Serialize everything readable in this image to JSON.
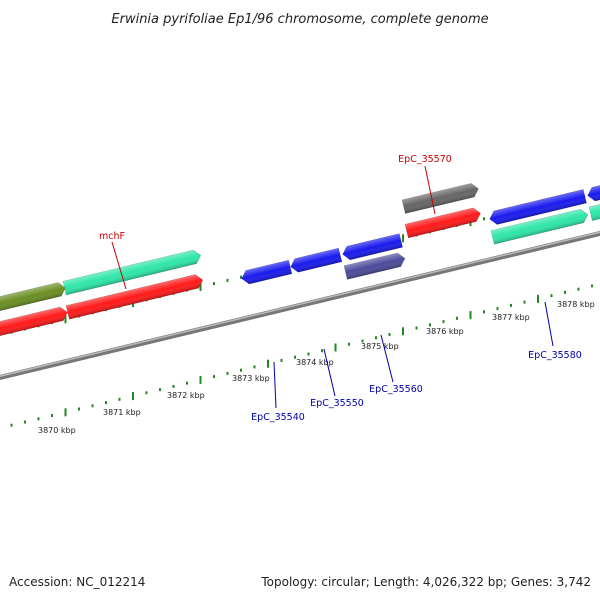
{
  "title": "Erwinia pyrifoliae Ep1/96 chromosome, complete genome",
  "footer": {
    "accession": "Accession: NC_012214",
    "topology": "Topology: circular; Length: 4,026,322 bp; Genes: 3,742"
  },
  "colors": {
    "tick": "#228822",
    "backbone": "#808080",
    "label_red": "#cc0000",
    "label_blue": "#0000aa",
    "gene_red": "#ff1a1a",
    "gene_teal": "#2ee6a8",
    "gene_olive": "#6b8e23",
    "gene_blue": "#1a1aee",
    "gene_slate": "#4b4b9a",
    "gene_gray": "#666666"
  },
  "ruler": {
    "labels": [
      "3870 kbp",
      "3871 kbp",
      "3872 kbp",
      "3873 kbp",
      "3874 kbp",
      "3875 kbp",
      "3876 kbp",
      "3877 kbp",
      "3878 kbp"
    ]
  },
  "gene_labels": [
    "mchF",
    "EpC_35570",
    "EpC_35540",
    "EpC_35550",
    "EpC_35560",
    "EpC_35580"
  ],
  "genes": [
    {
      "name": "olive-gene",
      "color": "olive",
      "strand": 1,
      "direction": 1
    },
    {
      "name": "teal-gene",
      "color": "teal",
      "strand": 1,
      "direction": 1
    },
    {
      "name": "red-gene-left",
      "color": "red",
      "strand": 2,
      "direction": 1
    },
    {
      "name": "red-gene-main",
      "color": "red",
      "strand": 2,
      "direction": 1
    },
    {
      "name": "blue-gene-35540",
      "color": "blue",
      "strand": 3,
      "direction": -1
    },
    {
      "name": "blue-gene-35550",
      "color": "blue",
      "strand": 3,
      "direction": -1
    },
    {
      "name": "blue-gene-35560",
      "color": "blue",
      "strand": 3,
      "direction": -1
    },
    {
      "name": "slate-gene",
      "color": "slate",
      "strand": 4,
      "direction": 1
    },
    {
      "name": "gray-gene-35570",
      "color": "gray",
      "strand": 1,
      "direction": 1
    },
    {
      "name": "red-gene-right",
      "color": "red",
      "strand": 2,
      "direction": 1
    },
    {
      "name": "blue-gene-35580",
      "color": "blue",
      "strand": 3,
      "direction": -1
    },
    {
      "name": "blue-gene-edge",
      "color": "blue",
      "strand": 3,
      "direction": -1
    },
    {
      "name": "teal-gene-right",
      "color": "teal",
      "strand": 4,
      "direction": 1
    },
    {
      "name": "teal-gene-edge",
      "color": "teal",
      "strand": 4,
      "direction": 1
    }
  ]
}
